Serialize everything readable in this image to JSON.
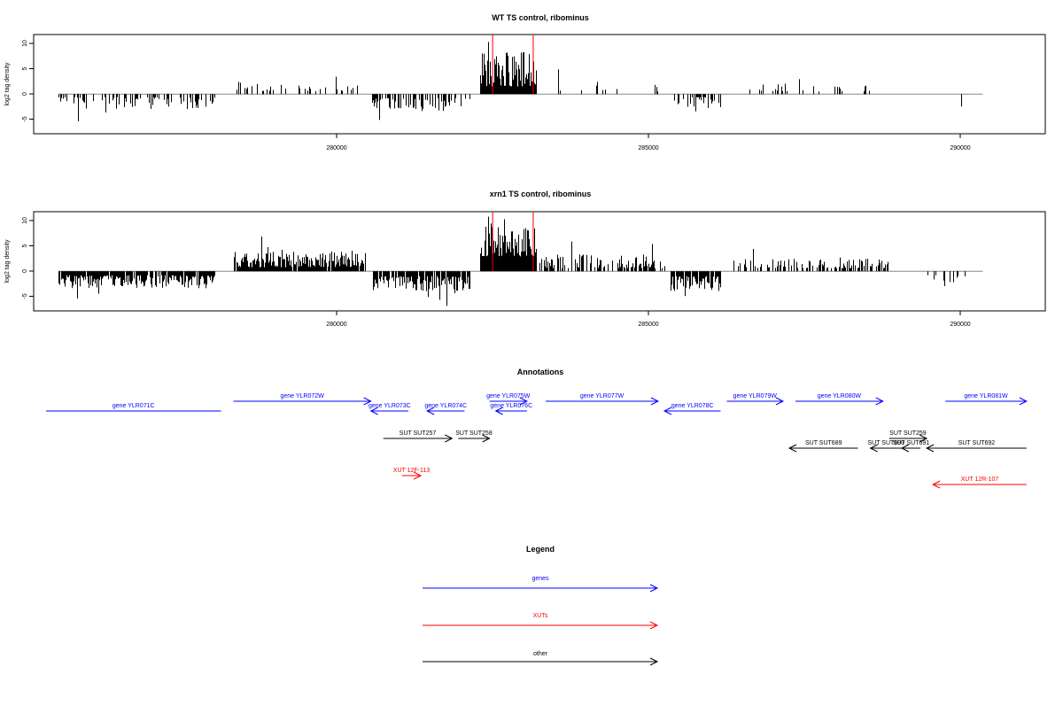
{
  "panels": [
    {
      "title": "WT TS control, ribominus",
      "ylabel": "log2 tag density",
      "yticks": [
        "-5",
        "0",
        "5",
        "10"
      ],
      "xticks": [
        "280000",
        "285000",
        "290000"
      ]
    },
    {
      "title": "xrn1 TS control, ribominus",
      "ylabel": "log2 tag density",
      "yticks": [
        "-5",
        "0",
        "5",
        "10"
      ],
      "xticks": [
        "280000",
        "285000",
        "290000"
      ]
    }
  ],
  "annotations": {
    "title": "Annotations",
    "features": [
      {
        "label": "gene YLR071C",
        "start": 275200,
        "end": 278600,
        "strand": "-",
        "type": "gene",
        "row": 1
      },
      {
        "label": "gene YLR072W",
        "start": 278800,
        "end": 281000,
        "strand": "+",
        "type": "gene",
        "row": 0
      },
      {
        "label": "gene YLR073C",
        "start": 281000,
        "end": 281600,
        "strand": "-",
        "type": "gene",
        "row": 1
      },
      {
        "label": "gene YLR074C",
        "start": 281900,
        "end": 282500,
        "strand": "-",
        "type": "gene",
        "row": 1
      },
      {
        "label": "gene YLR075W",
        "start": 282900,
        "end": 283500,
        "strand": "+",
        "type": "gene",
        "row": 0
      },
      {
        "label": "gene YLR076C",
        "start": 283000,
        "end": 283500,
        "strand": "-",
        "type": "gene",
        "row": 1
      },
      {
        "label": "gene YLR077W",
        "start": 283800,
        "end": 285600,
        "strand": "+",
        "type": "gene",
        "row": 0
      },
      {
        "label": "gene YLR078C",
        "start": 285700,
        "end": 286600,
        "strand": "-",
        "type": "gene",
        "row": 1
      },
      {
        "label": "gene YLR079W",
        "start": 286700,
        "end": 287600,
        "strand": "+",
        "type": "gene",
        "row": 0
      },
      {
        "label": "gene YLR080W",
        "start": 287800,
        "end": 289200,
        "strand": "+",
        "type": "gene",
        "row": 0
      },
      {
        "label": "gene YLR081W",
        "start": 290200,
        "end": 291500,
        "strand": "+",
        "type": "gene",
        "row": 0
      },
      {
        "label": "SUT SUT257",
        "start": 281200,
        "end": 282300,
        "strand": "+",
        "type": "other",
        "row": 2
      },
      {
        "label": "SUT SUT258",
        "start": 282400,
        "end": 282900,
        "strand": "+",
        "type": "other",
        "row": 2
      },
      {
        "label": "SUT SUT689",
        "start": 287700,
        "end": 288800,
        "strand": "-",
        "type": "other",
        "row": 3
      },
      {
        "label": "SUT SUT690",
        "start": 289000,
        "end": 289500,
        "strand": "-",
        "type": "other",
        "row": 3
      },
      {
        "label": "SUT SUT259",
        "start": 289300,
        "end": 289900,
        "strand": "+",
        "type": "other",
        "row": 2
      },
      {
        "label": "SUT SUT691",
        "start": 289500,
        "end": 289800,
        "strand": "-",
        "type": "other",
        "row": 3
      },
      {
        "label": "SUT SUT692",
        "start": 289900,
        "end": 291500,
        "strand": "-",
        "type": "other",
        "row": 3
      },
      {
        "label": "XUT 12F-113",
        "start": 281500,
        "end": 281800,
        "strand": "+",
        "type": "xut",
        "row": 4
      },
      {
        "label": "XUT 12R-107",
        "start": 290000,
        "end": 291500,
        "strand": "-",
        "type": "xut",
        "row": 5
      }
    ]
  },
  "legend": {
    "title": "Legend",
    "items": [
      {
        "label": "genes",
        "color": "#0000ff"
      },
      {
        "label": "XUTs",
        "color": "#ff0000"
      },
      {
        "label": "other",
        "color": "#000000"
      }
    ]
  },
  "chart_data": [
    {
      "type": "bar",
      "title": "WT TS control, ribominus",
      "xlabel": "",
      "ylabel": "log2 tag density",
      "xlim": [
        275600,
        291800
      ],
      "ylim": [
        -8,
        12
      ],
      "grid": false,
      "baseline_range": [
        276000,
        290800
      ],
      "highlight_color": "#ff0000",
      "highlight_x": [
        282950,
        283600
      ],
      "regions": [
        {
          "start": 276000,
          "end": 278500,
          "strand": "-",
          "min": 0.6,
          "max": 3.0,
          "peak": 5.5,
          "density": 0.35
        },
        {
          "start": 278800,
          "end": 280900,
          "strand": "+",
          "min": 0.6,
          "max": 2.5,
          "peak": 3.5,
          "density": 0.18
        },
        {
          "start": 281000,
          "end": 282600,
          "strand": "-",
          "min": 0.8,
          "max": 3.5,
          "peak": 5.2,
          "density": 0.45
        },
        {
          "start": 282750,
          "end": 283650,
          "strand": "+",
          "min": 1.5,
          "max": 8.5,
          "peak": 10.5,
          "density": 1.0
        },
        {
          "start": 283700,
          "end": 285600,
          "strand": "+",
          "min": 0.5,
          "max": 2.5,
          "peak": 5.0,
          "density": 0.12
        },
        {
          "start": 285800,
          "end": 286600,
          "strand": "-",
          "min": 0.6,
          "max": 3.0,
          "peak": 3.5,
          "density": 0.5
        },
        {
          "start": 286800,
          "end": 289200,
          "strand": "+",
          "min": 0.5,
          "max": 2.2,
          "peak": 3.0,
          "density": 0.12
        },
        {
          "start": 290200,
          "end": 290600,
          "strand": "-",
          "min": 1.0,
          "max": 2.5,
          "peak": 2.5,
          "density": 0.05
        }
      ]
    },
    {
      "type": "bar",
      "title": "xrn1 TS control, ribominus",
      "xlabel": "",
      "ylabel": "log2 tag density",
      "xlim": [
        275600,
        291800
      ],
      "ylim": [
        -8,
        12
      ],
      "grid": false,
      "baseline_range": [
        276000,
        290800
      ],
      "highlight_color": "#ff0000",
      "highlight_x": [
        282950,
        283600
      ],
      "regions": [
        {
          "start": 276000,
          "end": 278500,
          "strand": "-",
          "min": 0.8,
          "max": 3.5,
          "peak": 5.5,
          "density": 0.9
        },
        {
          "start": 278800,
          "end": 280900,
          "strand": "+",
          "min": 0.8,
          "max": 4.0,
          "peak": 7.0,
          "density": 0.95
        },
        {
          "start": 281000,
          "end": 282600,
          "strand": "-",
          "min": 1.0,
          "max": 4.0,
          "peak": 7.0,
          "density": 0.85
        },
        {
          "start": 282750,
          "end": 283650,
          "strand": "+",
          "min": 3.0,
          "max": 9.0,
          "peak": 11.0,
          "density": 1.0
        },
        {
          "start": 283700,
          "end": 285700,
          "strand": "+",
          "min": 0.6,
          "max": 3.5,
          "peak": 6.0,
          "density": 0.6
        },
        {
          "start": 285800,
          "end": 286600,
          "strand": "-",
          "min": 1.0,
          "max": 4.0,
          "peak": 5.0,
          "density": 0.9
        },
        {
          "start": 286800,
          "end": 289300,
          "strand": "+",
          "min": 0.6,
          "max": 2.5,
          "peak": 4.5,
          "density": 0.45
        },
        {
          "start": 289800,
          "end": 290600,
          "strand": "-",
          "min": 0.8,
          "max": 2.5,
          "peak": 3.0,
          "density": 0.1
        }
      ]
    }
  ]
}
